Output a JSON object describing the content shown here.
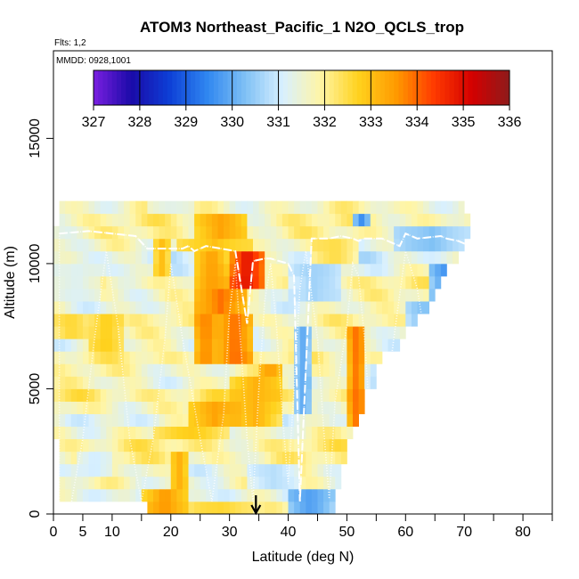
{
  "chart_data": {
    "type": "heatmap",
    "title": "ATOM3 Northeast_Pacific_1 N2O_QCLS_trop",
    "flights_label": "Flts: 1,2",
    "date_label": "MMDD: 0928,1001",
    "xlabel": "Latitude (deg N)",
    "ylabel": "Altitude (m)",
    "xlim": [
      0,
      85
    ],
    "ylim": [
      0,
      18500
    ],
    "x_tick_labels": [
      "0",
      "5",
      "10",
      "20",
      "30",
      "40",
      "50",
      "60",
      "70",
      "80"
    ],
    "x_tick_values": [
      0,
      5,
      10,
      20,
      30,
      40,
      50,
      60,
      70,
      80
    ],
    "x_minor_ticks": [
      15,
      25,
      35,
      45,
      55,
      65,
      75,
      85
    ],
    "y_tick_labels": [
      "0",
      "5000",
      "10000",
      "15000"
    ],
    "y_tick_values": [
      0,
      5000,
      10000,
      15000
    ],
    "colorbar": {
      "min": 327,
      "max": 336,
      "tick_labels": [
        "327",
        "328",
        "329",
        "330",
        "331",
        "332",
        "333",
        "334",
        "335",
        "336"
      ],
      "tick_values": [
        327,
        328,
        329,
        330,
        331,
        332,
        333,
        334,
        335,
        336
      ],
      "colors": [
        "#7a1fe0",
        "#1a0aa8",
        "#0d3fd6",
        "#2f86f0",
        "#7ec0f5",
        "#d8f0ff",
        "#fff5a6",
        "#ffd21e",
        "#ff9a00",
        "#ff3a00",
        "#d40000",
        "#8e1b1b"
      ]
    },
    "marker": {
      "latitude": 34.5,
      "label": "↓"
    },
    "band_alt_km": [
      0,
      0.5,
      1.0,
      1.5,
      2.0,
      2.5,
      3.0,
      3.5,
      4.0,
      4.5,
      5.0,
      5.5,
      6.0,
      6.5,
      7.0,
      7.5,
      8.0,
      8.5,
      9.0,
      9.5,
      10.0,
      10.5,
      11.0,
      11.5,
      12.0
    ],
    "band_lat_extent": [
      [
        16,
        47.5
      ],
      [
        1,
        48
      ],
      [
        1,
        49
      ],
      [
        1,
        49
      ],
      [
        1,
        50
      ],
      [
        1,
        50
      ],
      [
        0,
        51
      ],
      [
        0,
        52
      ],
      [
        0,
        53
      ],
      [
        0,
        53
      ],
      [
        0,
        55
      ],
      [
        0,
        55
      ],
      [
        0,
        56
      ],
      [
        0,
        59
      ],
      [
        0,
        60
      ],
      [
        0,
        62
      ],
      [
        0,
        64
      ],
      [
        0,
        65
      ],
      [
        0,
        66
      ],
      [
        0,
        67
      ],
      [
        0,
        69
      ],
      [
        0,
        70
      ],
      [
        0,
        71
      ],
      [
        1,
        71
      ],
      [
        1,
        70
      ]
    ],
    "band_base_value": [
      331.8,
      331.2,
      331.6,
      331.5,
      331.9,
      332.0,
      331.7,
      331.4,
      331.8,
      332.1,
      331.6,
      331.7,
      331.9,
      331.5,
      331.6,
      331.8,
      331.5,
      331.7,
      331.9,
      331.4,
      331.2,
      331.5,
      331.8,
      331.9,
      331.7
    ],
    "anomalies": [
      {
        "lat": [
          15,
          23
        ],
        "alt": [
          0,
          1.0
        ],
        "value": 333.6
      },
      {
        "lat": [
          23,
          34
        ],
        "alt": [
          0,
          0.5
        ],
        "value": 332.6
      },
      {
        "lat": [
          40,
          47.5
        ],
        "alt": [
          0,
          1.0
        ],
        "value": 329.8
      },
      {
        "lat": [
          33,
          42
        ],
        "alt": [
          1.0,
          2.0
        ],
        "value": 330.8
      },
      {
        "lat": [
          20,
          23
        ],
        "alt": [
          1.0,
          2.5
        ],
        "value": 333.2
      },
      {
        "lat": [
          4,
          10
        ],
        "alt": [
          1.5,
          2.5
        ],
        "value": 331.0
      },
      {
        "lat": [
          23,
          32
        ],
        "alt": [
          3.5,
          4.5
        ],
        "value": 333.4
      },
      {
        "lat": [
          17,
          30
        ],
        "alt": [
          3.0,
          3.5
        ],
        "value": 332.8
      },
      {
        "lat": [
          30,
          39
        ],
        "alt": [
          3.5,
          5.5
        ],
        "value": 333.2
      },
      {
        "lat": [
          35,
          39
        ],
        "alt": [
          5.5,
          6.0
        ],
        "value": 333.5
      },
      {
        "lat": [
          41,
          44
        ],
        "alt": [
          4.0,
          7.5
        ],
        "value": 330.0
      },
      {
        "lat": [
          50.5,
          53
        ],
        "alt": [
          3.5,
          7.5
        ],
        "value": 334.0
      },
      {
        "lat": [
          54,
          60
        ],
        "alt": [
          4.5,
          6.0
        ],
        "value": 330.7
      },
      {
        "lat": [
          60,
          66
        ],
        "alt": [
          6.0,
          8.5
        ],
        "value": 330.3
      },
      {
        "lat": [
          64,
          70
        ],
        "alt": [
          7.5,
          10.0
        ],
        "value": 329.6
      },
      {
        "lat": [
          69,
          71
        ],
        "alt": [
          8.0,
          9.5
        ],
        "value": 328.8
      },
      {
        "lat": [
          6,
          12
        ],
        "alt": [
          6.5,
          8.0
        ],
        "value": 332.8
      },
      {
        "lat": [
          0,
          6
        ],
        "alt": [
          7.0,
          8.0
        ],
        "value": 332.6
      },
      {
        "lat": [
          24,
          28
        ],
        "alt": [
          6.0,
          8.0
        ],
        "value": 333.8
      },
      {
        "lat": [
          28,
          34
        ],
        "alt": [
          6.0,
          8.0
        ],
        "value": 334.0
      },
      {
        "lat": [
          24,
          33
        ],
        "alt": [
          8.0,
          9.0
        ],
        "value": 333.9
      },
      {
        "lat": [
          30,
          36
        ],
        "alt": [
          9.0,
          10.5
        ],
        "value": 335.0
      },
      {
        "lat": [
          24,
          30
        ],
        "alt": [
          9.0,
          10.5
        ],
        "value": 333.5
      },
      {
        "lat": [
          21,
          34
        ],
        "alt": [
          10.5,
          11.0
        ],
        "value": 333.0
      },
      {
        "lat": [
          24,
          33
        ],
        "alt": [
          11.0,
          12.0
        ],
        "value": 333.4
      },
      {
        "lat": [
          40,
          49
        ],
        "alt": [
          8.5,
          10.0
        ],
        "value": 330.6
      },
      {
        "lat": [
          58,
          71
        ],
        "alt": [
          10.5,
          11.5
        ],
        "value": 330.3
      },
      {
        "lat": [
          51,
          54
        ],
        "alt": [
          11.5,
          12.0
        ],
        "value": 329.6
      },
      {
        "lat": [
          16,
          24
        ],
        "alt": [
          12.0,
          12.5
        ],
        "value": 331.3
      },
      {
        "lat": [
          17,
          20
        ],
        "alt": [
          9.5,
          11.0
        ],
        "value": 333.0
      },
      {
        "lat": [
          0,
          8
        ],
        "alt": [
          8.5,
          10.0
        ],
        "value": 331.2
      },
      {
        "lat": [
          44,
          52
        ],
        "alt": [
          10.0,
          11.0
        ],
        "value": 332.5
      }
    ],
    "flight_path_lat": [
      1,
      1,
      6,
      10,
      14,
      16,
      17,
      22,
      23,
      24,
      25,
      26,
      31,
      33,
      34,
      36,
      37,
      40,
      41,
      42,
      44,
      47,
      49,
      51,
      52,
      53,
      56,
      57,
      58,
      59,
      60,
      61,
      62,
      66,
      67,
      69,
      70,
      71,
      70,
      69,
      68,
      67,
      66,
      64,
      62,
      60,
      58,
      56,
      55,
      54,
      53,
      52,
      51,
      50,
      48,
      47,
      46,
      45,
      43,
      42,
      41,
      40,
      39,
      38,
      37,
      36,
      35,
      34,
      33,
      32,
      31,
      30,
      29,
      27,
      25,
      22,
      20,
      19,
      17,
      15,
      13,
      11,
      9,
      7,
      5,
      3
    ],
    "flight_path_alt_km": [
      0.3,
      11.2,
      11.3,
      11.2,
      11.1,
      10.6,
      10.6,
      10.6,
      10.7,
      10.5,
      10.6,
      10.7,
      10.5,
      7.6,
      10.1,
      10.2,
      10.2,
      10.0,
      9.5,
      0.5,
      11.0,
      11.0,
      11.1,
      11.0,
      10.9,
      11.0,
      11.0,
      10.9,
      10.8,
      10.7,
      11.2,
      11.1,
      11.0,
      11.1,
      11.0,
      10.9,
      10.8,
      10.8,
      8.0,
      5.5,
      3.0,
      0.6,
      3.0,
      6.0,
      9.0,
      10.5,
      7.0,
      3.5,
      0.7,
      3.5,
      7.0,
      9.5,
      10.0,
      7.5,
      4.5,
      0.6,
      3.5,
      7.0,
      10.5,
      9.0,
      5.0,
      1.2,
      4.0,
      7.5,
      10.0,
      8.5,
      5.0,
      0.5,
      3.0,
      6.5,
      10.0,
      8.0,
      4.0,
      0.5,
      3.0,
      7.0,
      10.0,
      7.0,
      3.0,
      0.5,
      3.0,
      7.5,
      10.5,
      7.0,
      3.0,
      0.4
    ]
  }
}
